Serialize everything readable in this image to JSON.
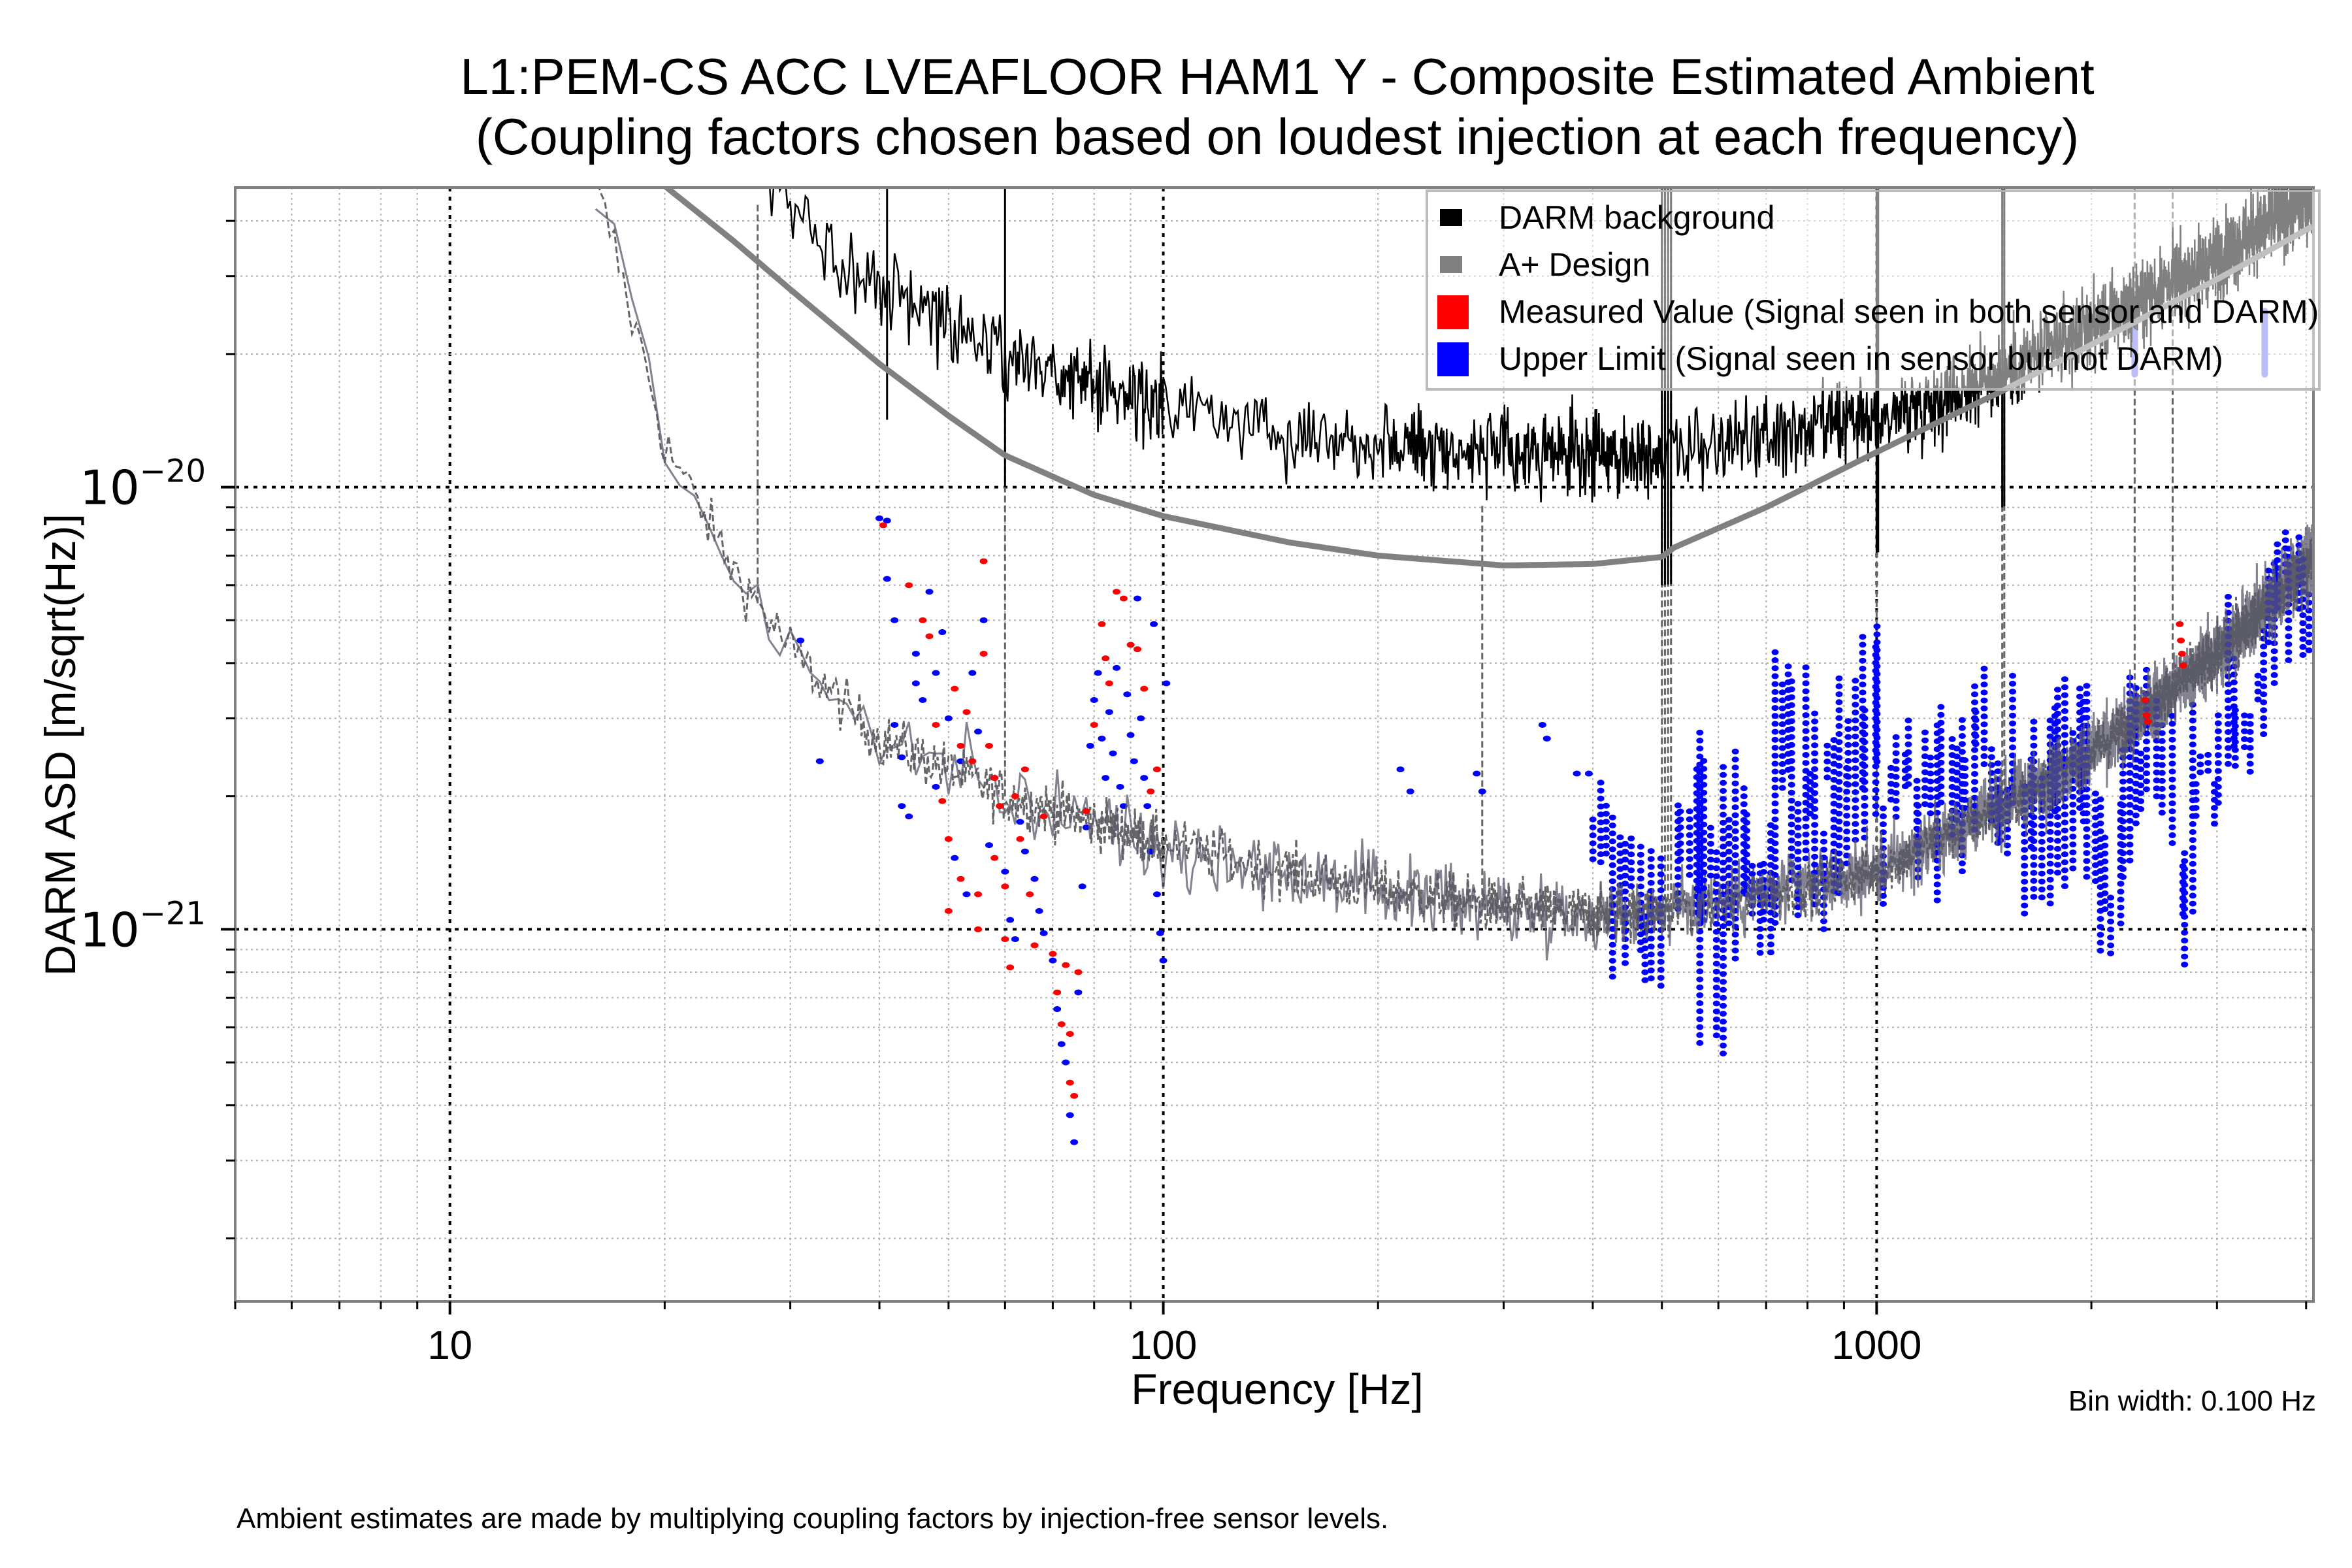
{
  "chart_data": {
    "type": "scatter",
    "title": "L1:PEM-CS ACC LVEAFLOOR HAM1 Y - Composite Estimated Ambient",
    "subtitle": "(Coupling factors chosen based on loudest injection at each frequency)",
    "xlabel": "Frequency [Hz]",
    "ylabel": "DARM ASD [m/sqrt(Hz)]",
    "xscale": "log",
    "yscale": "log",
    "xlim": [
      5,
      4096
    ],
    "ylim": [
      1.44e-22,
      4.76e-20
    ],
    "xticks": [
      {
        "value": 10,
        "label": "10"
      },
      {
        "value": 100,
        "label": "100"
      },
      {
        "value": 1000,
        "label": "1000"
      }
    ],
    "yticks": [
      {
        "value": 1e-20,
        "base": "10",
        "exp": "−20"
      },
      {
        "value": 1e-21,
        "base": "10",
        "exp": "−21"
      }
    ],
    "grid": true,
    "legend_position": "top-right",
    "annotation": "Bin width: 0.100 Hz",
    "footnote": "Ambient estimates are made by multiplying coupling factors by injection-free sensor levels.",
    "legend": [
      {
        "label": "DARM background",
        "color": "#000000",
        "swatch": "square"
      },
      {
        "label": "A+ Design",
        "color": "#808080",
        "swatch": "square"
      },
      {
        "label": "Measured Value (Signal seen in both sensor and DARM)",
        "color": "#ff0000",
        "swatch": "rect"
      },
      {
        "label": "Upper Limit (Signal seen in sensor but not DARM)",
        "color": "#0000ff",
        "swatch": "rect"
      }
    ],
    "series": [
      {
        "name": "DARM background",
        "kind": "noisy-line",
        "color": "#000000",
        "noise_dex": 0.09,
        "points": [
          [
            28,
            4.8e-20
          ],
          [
            35,
            3.3e-20
          ],
          [
            45,
            2.6e-20
          ],
          [
            60,
            2e-20
          ],
          [
            80,
            1.7e-20
          ],
          [
            100,
            1.52e-20
          ],
          [
            150,
            1.35e-20
          ],
          [
            200,
            1.27e-20
          ],
          [
            300,
            1.2e-20
          ],
          [
            400,
            1.18e-20
          ],
          [
            500,
            1.2e-20
          ],
          [
            700,
            1.28e-20
          ],
          [
            1000,
            1.42e-20
          ],
          [
            1500,
            1.8e-20
          ],
          [
            2000,
            2.3e-20
          ],
          [
            3000,
            3.3e-20
          ],
          [
            4096,
            4.6e-20
          ]
        ],
        "lines_hz": [
          41,
          60,
          500,
          505,
          510,
          515,
          1000,
          1005,
          1500,
          1510
        ]
      },
      {
        "name": "A+ Design",
        "kind": "smooth-line",
        "color": "#808080",
        "points": [
          [
            20,
            4.8e-20
          ],
          [
            25,
            3.6e-20
          ],
          [
            30,
            2.8e-20
          ],
          [
            40,
            1.9e-20
          ],
          [
            50,
            1.45e-20
          ],
          [
            60,
            1.18e-20
          ],
          [
            80,
            9.6e-21
          ],
          [
            100,
            8.6e-21
          ],
          [
            150,
            7.5e-21
          ],
          [
            200,
            7e-21
          ],
          [
            300,
            6.65e-21
          ],
          [
            400,
            6.7e-21
          ],
          [
            500,
            6.95e-21
          ],
          [
            520,
            7.3e-21
          ],
          [
            700,
            9e-21
          ],
          [
            1000,
            1.2e-20
          ],
          [
            1500,
            1.65e-20
          ],
          [
            2000,
            2.1e-20
          ],
          [
            3000,
            2.95e-20
          ],
          [
            4096,
            3.9e-20
          ]
        ]
      },
      {
        "name": "DARM background / 10 (unlabeled, dashed)",
        "kind": "noisy-dashed",
        "color": "#666666",
        "noise_dex": 0.06,
        "points": [
          [
            16,
            4.8e-20
          ],
          [
            17,
            3.5e-20
          ],
          [
            18,
            2.4e-20
          ],
          [
            19,
            1.8e-20
          ],
          [
            20,
            1.25e-20
          ],
          [
            22,
            9.5e-21
          ],
          [
            25,
            6.5e-21
          ],
          [
            30,
            4.3e-21
          ],
          [
            35,
            3.3e-21
          ],
          [
            40,
            2.7e-21
          ],
          [
            50,
            2.3e-21
          ],
          [
            60,
            2e-21
          ],
          [
            80,
            1.75e-21
          ],
          [
            100,
            1.56e-21
          ],
          [
            150,
            1.35e-21
          ],
          [
            200,
            1.23e-21
          ],
          [
            300,
            1.12e-21
          ],
          [
            400,
            1.08e-21
          ],
          [
            500,
            1.1e-21
          ],
          [
            700,
            1.2e-21
          ],
          [
            1000,
            1.35e-21
          ],
          [
            1500,
            1.9e-21
          ],
          [
            2000,
            2.5e-21
          ],
          [
            3000,
            4.2e-21
          ],
          [
            4096,
            6.9e-21
          ]
        ],
        "lines_hz": [
          27,
          60,
          280,
          500,
          505,
          510,
          515,
          1000,
          1500,
          1510,
          2300,
          2600
        ]
      },
      {
        "name": "Measured Value (Signal seen in both sensor and DARM)",
        "kind": "points",
        "color": "#ff0000",
        "points": [
          [
            40.5,
            8.2e-21
          ],
          [
            44,
            6e-21
          ],
          [
            46,
            5e-21
          ],
          [
            47,
            4.6e-21
          ],
          [
            48,
            2.9e-21
          ],
          [
            49,
            1.95e-21
          ],
          [
            50,
            1.6e-21
          ],
          [
            50,
            1.1e-21
          ],
          [
            51,
            3.5e-21
          ],
          [
            52,
            2.6e-21
          ],
          [
            52,
            1.3e-21
          ],
          [
            53,
            3.1e-21
          ],
          [
            54,
            2.4e-21
          ],
          [
            55,
            1.2e-21
          ],
          [
            55,
            1e-21
          ],
          [
            56,
            6.8e-21
          ],
          [
            56,
            4.2e-21
          ],
          [
            57,
            2.6e-21
          ],
          [
            58,
            2.2e-21
          ],
          [
            58,
            1.45e-21
          ],
          [
            59,
            1.9e-21
          ],
          [
            60,
            1.25e-21
          ],
          [
            60,
            9.5e-22
          ],
          [
            61,
            8.2e-22
          ],
          [
            62,
            2e-21
          ],
          [
            63,
            1.6e-21
          ],
          [
            64,
            2.3e-21
          ],
          [
            65,
            1.2e-21
          ],
          [
            66,
            9.2e-22
          ],
          [
            68,
            1.8e-21
          ],
          [
            70,
            8.8e-22
          ],
          [
            71,
            7.2e-22
          ],
          [
            72,
            6.1e-22
          ],
          [
            73,
            8.3e-22
          ],
          [
            74,
            5.8e-22
          ],
          [
            74,
            4.5e-22
          ],
          [
            75,
            4.2e-22
          ],
          [
            76,
            8e-22
          ],
          [
            78,
            1.85e-21
          ],
          [
            80,
            2.9e-21
          ],
          [
            82,
            4.9e-21
          ],
          [
            83,
            4.1e-21
          ],
          [
            84,
            3.6e-21
          ],
          [
            86,
            5.8e-21
          ],
          [
            88,
            5.6e-21
          ],
          [
            90,
            4.4e-21
          ],
          [
            92,
            4.3e-21
          ],
          [
            94,
            3.5e-21
          ],
          [
            96,
            2.05e-21
          ],
          [
            98,
            2.3e-21
          ],
          [
            2380,
            3.3e-21
          ],
          [
            2390,
            3.05e-21
          ],
          [
            2400,
            2.95e-21
          ],
          [
            2660,
            4.9e-21
          ],
          [
            2670,
            4.5e-21
          ],
          [
            2680,
            4.2e-21
          ],
          [
            2690,
            3.95e-21
          ]
        ]
      },
      {
        "name": "Upper Limit (Signal seen in sensor but not DARM)",
        "kind": "points",
        "color": "#0000ff",
        "points": [
          [
            31,
            4.5e-21
          ],
          [
            33,
            2.4e-21
          ],
          [
            40,
            8.5e-21
          ],
          [
            41,
            8.4e-21
          ],
          [
            41,
            6.2e-21
          ],
          [
            42,
            5e-21
          ],
          [
            42,
            2.9e-21
          ],
          [
            43,
            2.45e-21
          ],
          [
            43,
            1.9e-21
          ],
          [
            44,
            1.8e-21
          ],
          [
            45,
            4.2e-21
          ],
          [
            45,
            3.6e-21
          ],
          [
            46,
            3.3e-21
          ],
          [
            47,
            5.8e-21
          ],
          [
            48,
            3.8e-21
          ],
          [
            48,
            2.1e-21
          ],
          [
            49,
            4.7e-21
          ],
          [
            50,
            3e-21
          ],
          [
            51,
            1.45e-21
          ],
          [
            52,
            2.4e-21
          ],
          [
            53,
            1.2e-21
          ],
          [
            54,
            3.8e-21
          ],
          [
            55,
            2.8e-21
          ],
          [
            56,
            5e-21
          ],
          [
            57,
            1.55e-21
          ],
          [
            58,
            2.2e-21
          ],
          [
            59,
            1.9e-21
          ],
          [
            60,
            1.35e-21
          ],
          [
            61,
            1.05e-21
          ],
          [
            62,
            9.5e-22
          ],
          [
            63,
            1.75e-21
          ],
          [
            64,
            1.5e-21
          ],
          [
            66,
            1.3e-21
          ],
          [
            67,
            1.1e-21
          ],
          [
            68,
            9.8e-22
          ],
          [
            70,
            8.5e-22
          ],
          [
            71,
            6.6e-22
          ],
          [
            72,
            5.5e-22
          ],
          [
            73,
            5e-22
          ],
          [
            74,
            3.8e-22
          ],
          [
            75,
            3.3e-22
          ],
          [
            76,
            7.2e-22
          ],
          [
            77,
            1.25e-21
          ],
          [
            78,
            1.7e-21
          ],
          [
            79,
            2.6e-21
          ],
          [
            80,
            3.3e-21
          ],
          [
            81,
            3.8e-21
          ],
          [
            82,
            2.7e-21
          ],
          [
            83,
            2.2e-21
          ],
          [
            84,
            3.1e-21
          ],
          [
            85,
            2.5e-21
          ],
          [
            86,
            3.9e-21
          ],
          [
            87,
            2.1e-21
          ],
          [
            88,
            1.9e-21
          ],
          [
            89,
            3.4e-21
          ],
          [
            90,
            2.75e-21
          ],
          [
            91,
            2.4e-21
          ],
          [
            92,
            5.6e-21
          ],
          [
            93,
            3e-21
          ],
          [
            94,
            2.2e-21
          ],
          [
            95,
            1.9e-21
          ],
          [
            96,
            1.5e-21
          ],
          [
            97,
            4.9e-21
          ],
          [
            98,
            1.2e-21
          ],
          [
            99,
            9.8e-22
          ],
          [
            100,
            8.5e-22
          ],
          [
            101,
            3.6e-21
          ],
          [
            215,
            2.3e-21
          ],
          [
            222,
            2.05e-21
          ],
          [
            275,
            2.25e-21
          ],
          [
            280,
            2.05e-21
          ],
          [
            340,
            2.9e-21
          ],
          [
            345,
            2.7e-21
          ],
          [
            380,
            2.25e-21
          ],
          [
            395,
            2.25e-21
          ]
        ],
        "bands": [
          [
            400,
            470,
            7.5e-22,
            2.4e-21
          ],
          [
            470,
            500,
            5.5e-22,
            2.3e-21
          ],
          [
            520,
            560,
            9e-22,
            2.6e-21
          ],
          [
            560,
            640,
            5e-22,
            2.9e-21
          ],
          [
            640,
            720,
            7.8e-22,
            2.4e-21
          ],
          [
            720,
            800,
            8.8e-22,
            4.4e-21
          ],
          [
            800,
            880,
            1e-21,
            4.4e-21
          ],
          [
            880,
            960,
            9.5e-22,
            5.6e-21
          ],
          [
            960,
            1040,
            9e-22,
            8e-21
          ],
          [
            1040,
            1120,
            1.25e-21,
            3.6e-21
          ],
          [
            1120,
            1230,
            1.15e-21,
            3.3e-21
          ],
          [
            1230,
            1350,
            1.35e-21,
            4e-21
          ],
          [
            1350,
            1480,
            1.4e-21,
            4.5e-21
          ],
          [
            1480,
            1560,
            1.2e-21,
            3.9e-21
          ],
          [
            1600,
            1720,
            1.05e-21,
            4.1e-21
          ],
          [
            1720,
            1820,
            1.05e-21,
            4.2e-21
          ],
          [
            1820,
            1900,
            1.05e-21,
            3.8e-21
          ],
          [
            1900,
            2000,
            1.1e-21,
            3.6e-21
          ],
          [
            2000,
            2080,
            8.5e-22,
            2.7e-21
          ],
          [
            2080,
            2200,
            8.5e-22,
            2.5e-21
          ],
          [
            2200,
            2400,
            1.2e-21,
            4.1e-21
          ],
          [
            2450,
            2600,
            1.3e-21,
            4e-21
          ],
          [
            2650,
            2780,
            8e-22,
            3.4e-21
          ],
          [
            2780,
            2900,
            1.55e-21,
            3.1e-21
          ],
          [
            2900,
            3050,
            1.6e-21,
            3.3e-21
          ],
          [
            3050,
            3250,
            2.3e-21,
            6.8e-21
          ],
          [
            3250,
            3500,
            2e-21,
            5e-21
          ],
          [
            3500,
            3700,
            3e-21,
            8.5e-21
          ],
          [
            3700,
            4096,
            4e-21,
            1e-20
          ]
        ],
        "ghost_columns_hz": [
          2300,
          3500
        ],
        "ghost_range": [
          1.8e-20,
          2.5e-20
        ]
      }
    ]
  }
}
